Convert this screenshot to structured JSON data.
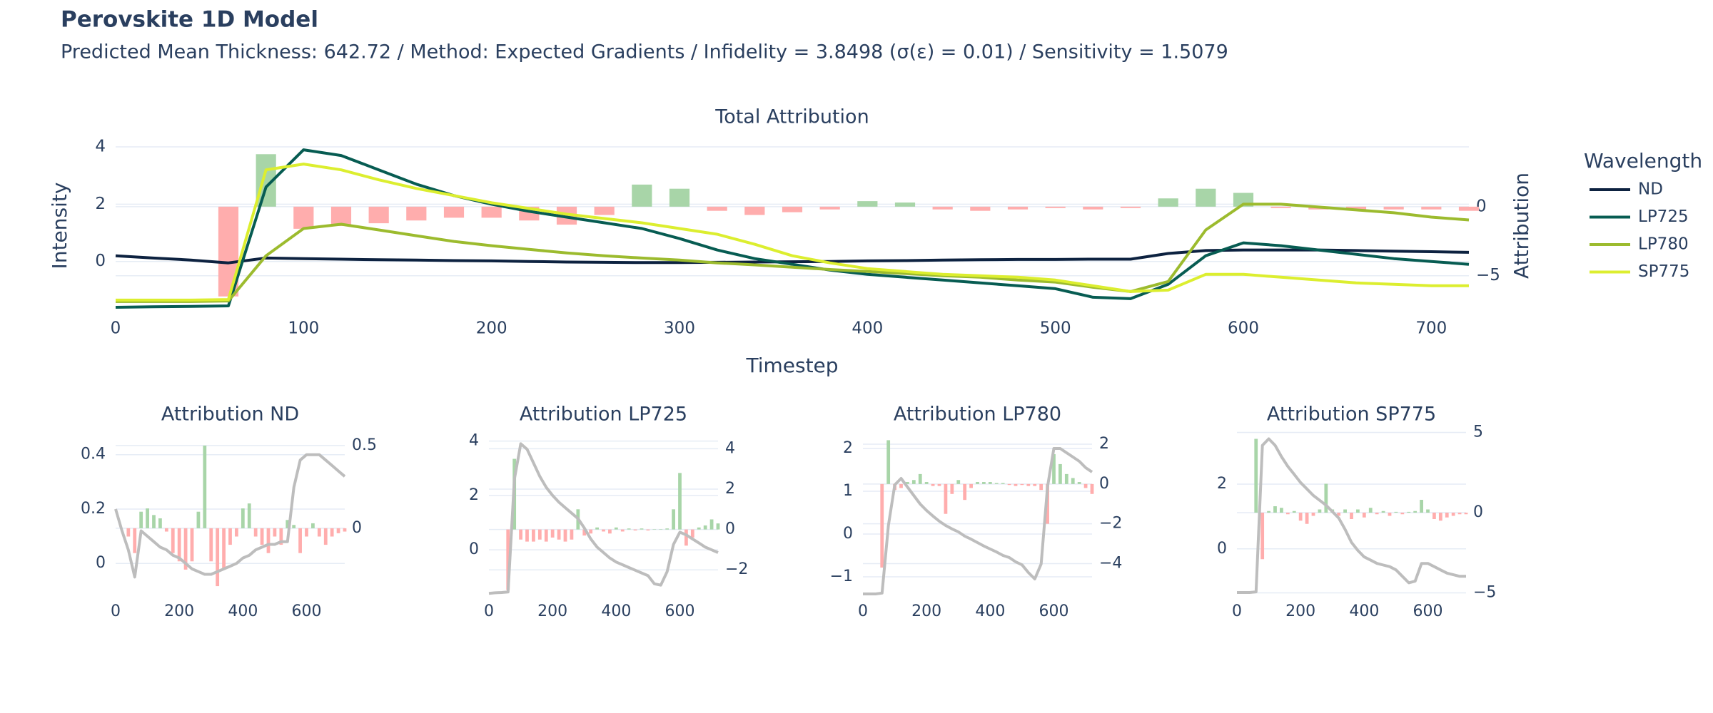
{
  "title": "Perovskite 1D Model",
  "subtitle": "Predicted Mean Thickness: 642.72 / Method: Expected Gradients / Infidelity = 3.8498 (σ(ε) = 0.01) / Sensitivity = 1.5079",
  "chart_data": [
    {
      "type": "line",
      "title": "Total Attribution",
      "x_label": "Timestep",
      "y_label": "Intensity",
      "y2_label": "Attribution",
      "legend_title": "Wavelength",
      "legend": "right",
      "grid": true,
      "x": [
        0,
        20,
        40,
        60,
        80,
        100,
        120,
        140,
        160,
        180,
        200,
        220,
        240,
        260,
        280,
        300,
        320,
        340,
        360,
        380,
        400,
        420,
        440,
        460,
        480,
        500,
        520,
        540,
        560,
        580,
        600,
        620,
        640,
        660,
        680,
        700,
        720
      ],
      "xlim": [
        0,
        720
      ],
      "xticks": [
        0,
        100,
        200,
        300,
        400,
        500,
        600,
        700
      ],
      "ylim": [
        -1.8,
        4.3
      ],
      "yticks": [
        0,
        2,
        4
      ],
      "y2lim": [
        -7.7,
        4.95
      ],
      "y2ticks": [
        {
          "value": -5,
          "label": "−5"
        },
        0
      ],
      "series": [
        {
          "name": "ND",
          "color": "#0d2240",
          "values": [
            0.2,
            0.12,
            0.05,
            -0.05,
            0.12,
            0.1,
            0.08,
            0.06,
            0.05,
            0.03,
            0.02,
            0.0,
            -0.02,
            -0.03,
            -0.04,
            -0.04,
            -0.03,
            -0.02,
            -0.01,
            0.0,
            0.02,
            0.03,
            0.05,
            0.06,
            0.07,
            0.07,
            0.08,
            0.08,
            0.28,
            0.38,
            0.4,
            0.4,
            0.4,
            0.38,
            0.36,
            0.34,
            0.32
          ]
        },
        {
          "name": "LP725",
          "color": "#075c52",
          "values": [
            -1.6,
            -1.58,
            -1.57,
            -1.55,
            2.6,
            3.9,
            3.7,
            3.2,
            2.7,
            2.3,
            2.0,
            1.75,
            1.55,
            1.35,
            1.15,
            0.8,
            0.4,
            0.1,
            -0.1,
            -0.3,
            -0.45,
            -0.55,
            -0.65,
            -0.75,
            -0.85,
            -0.95,
            -1.25,
            -1.3,
            -0.8,
            0.2,
            0.65,
            0.55,
            0.4,
            0.25,
            0.1,
            0.0,
            -0.1
          ]
        },
        {
          "name": "LP780",
          "color": "#9cbb2e",
          "values": [
            -1.4,
            -1.4,
            -1.4,
            -1.38,
            0.2,
            1.15,
            1.3,
            1.1,
            0.9,
            0.7,
            0.55,
            0.42,
            0.3,
            0.2,
            0.12,
            0.05,
            -0.05,
            -0.12,
            -0.2,
            -0.28,
            -0.35,
            -0.42,
            -0.5,
            -0.55,
            -0.65,
            -0.72,
            -0.9,
            -1.05,
            -0.7,
            1.1,
            2.0,
            2.0,
            1.9,
            1.8,
            1.7,
            1.55,
            1.45
          ]
        },
        {
          "name": "SP775",
          "color": "#dcee2f",
          "values": [
            -1.35,
            -1.35,
            -1.35,
            -1.33,
            3.2,
            3.4,
            3.2,
            2.85,
            2.55,
            2.3,
            2.05,
            1.85,
            1.65,
            1.5,
            1.35,
            1.15,
            0.95,
            0.6,
            0.2,
            -0.05,
            -0.25,
            -0.35,
            -0.45,
            -0.5,
            -0.55,
            -0.65,
            -0.85,
            -1.05,
            -1.0,
            -0.45,
            -0.45,
            -0.55,
            -0.65,
            -0.75,
            -0.8,
            -0.85,
            -0.85
          ]
        },
        {
          "type": "bar",
          "axis": "y2",
          "pos_color": "#a8d5a8",
          "neg_color": "#ffadad",
          "values": [
            0,
            0,
            0,
            -6.5,
            3.8,
            -1.6,
            -1.4,
            -1.2,
            -1.0,
            -0.8,
            -0.8,
            -1.0,
            -1.3,
            -0.6,
            1.6,
            1.3,
            -0.3,
            -0.6,
            -0.4,
            -0.2,
            0.4,
            0.3,
            -0.2,
            -0.3,
            -0.2,
            -0.1,
            -0.2,
            -0.1,
            0.6,
            1.3,
            1.0,
            -0.1,
            -0.2,
            -0.2,
            -0.2,
            -0.2,
            -0.3
          ]
        }
      ]
    },
    {
      "type": "bar_line",
      "title": "Attribution ND",
      "line_color": "#bdbdbd",
      "pos_color": "#a8d5a8",
      "neg_color": "#ffadad",
      "xlim": [
        0,
        720
      ],
      "xticks": [
        0,
        200,
        400,
        600
      ],
      "ylim": [
        -0.12,
        0.47
      ],
      "yticks": [
        0,
        0.2,
        0.4
      ],
      "y2lim": [
        -0.41,
        0.56
      ],
      "y2ticks": [
        0,
        0.5
      ],
      "values": [
        0,
        0,
        -0.05,
        -0.15,
        0.1,
        0.12,
        0.08,
        0.06,
        -0.02,
        -0.15,
        -0.2,
        -0.25,
        -0.2,
        0.1,
        0.5,
        -0.2,
        -0.35,
        -0.25,
        -0.1,
        -0.05,
        0.12,
        0.15,
        -0.05,
        -0.1,
        -0.15,
        -0.05,
        -0.1,
        0.05,
        0.02,
        -0.15,
        -0.05,
        0.03,
        -0.05,
        -0.1,
        -0.05,
        -0.03,
        -0.02
      ]
    },
    {
      "type": "bar_line",
      "title": "Attribution LP725",
      "line_color": "#bdbdbd",
      "pos_color": "#a8d5a8",
      "neg_color": "#ffadad",
      "xlim": [
        0,
        720
      ],
      "xticks": [
        0,
        200,
        400,
        600
      ],
      "ylim": [
        -1.7,
        4.2
      ],
      "yticks": [
        0,
        2,
        4
      ],
      "y2lim": [
        -3.3,
        4.65
      ],
      "y2ticks": [
        {
          "value": -2,
          "label": "−2"
        },
        0,
        2,
        4
      ],
      "values": [
        0,
        0,
        0,
        -3,
        3.5,
        -0.5,
        -0.6,
        -0.6,
        -0.5,
        -0.6,
        -0.4,
        -0.5,
        -0.6,
        -0.5,
        1.0,
        -0.3,
        -0.2,
        0.1,
        -0.1,
        -0.2,
        0.1,
        -0.1,
        0.05,
        -0.05,
        0.05,
        -0.05,
        0.02,
        0.02,
        0.05,
        1.0,
        2.8,
        -0.8,
        -0.4,
        0.1,
        0.2,
        0.5,
        0.3
      ]
    },
    {
      "type": "bar_line",
      "title": "Attribution LP780",
      "line_color": "#bdbdbd",
      "pos_color": "#a8d5a8",
      "neg_color": "#ffadad",
      "xlim": [
        0,
        720
      ],
      "xticks": [
        0,
        200,
        400,
        600
      ],
      "ylim": [
        -1.45,
        2.3
      ],
      "yticks": [
        {
          "value": -1,
          "label": "−1"
        },
        0,
        1,
        2
      ],
      "y2lim": [
        -5.63,
        2.43
      ],
      "y2ticks": [
        {
          "value": -4,
          "label": "−4"
        },
        {
          "value": -2,
          "label": "−2"
        },
        0,
        2
      ],
      "values": [
        0,
        0,
        0,
        -4.2,
        2.2,
        -0.3,
        -0.2,
        0.1,
        0.2,
        0.5,
        0.1,
        -0.1,
        -0.1,
        -1.5,
        -0.5,
        0.2,
        -0.8,
        -0.2,
        0.1,
        0.1,
        0.1,
        0.05,
        0.05,
        -0.05,
        -0.1,
        -0.05,
        -0.1,
        -0.1,
        -0.3,
        -2.0,
        1.5,
        1.0,
        0.5,
        0.3,
        0.1,
        -0.2,
        -0.5
      ]
    },
    {
      "type": "bar_line",
      "title": "Attribution SP775",
      "line_color": "#bdbdbd",
      "pos_color": "#a8d5a8",
      "neg_color": "#ffadad",
      "xlim": [
        0,
        720
      ],
      "xticks": [
        0,
        200,
        400,
        600
      ],
      "ylim": [
        -1.46,
        3.5
      ],
      "yticks": [
        0,
        2
      ],
      "y2lim": [
        -5.2,
        4.8
      ],
      "y2ticks": [
        {
          "value": -5,
          "label": "−5"
        },
        0,
        5
      ],
      "values": [
        0,
        0,
        0,
        4.6,
        -2.9,
        0.1,
        0.4,
        0.3,
        -0.1,
        0.1,
        -0.5,
        -0.7,
        -0.2,
        0.2,
        1.8,
        0.2,
        -0.2,
        0.2,
        -0.4,
        0.2,
        -0.3,
        0.3,
        -0.1,
        0.1,
        -0.2,
        0.05,
        -0.1,
        0.05,
        0.1,
        0.8,
        0.2,
        -0.4,
        -0.5,
        -0.3,
        -0.2,
        -0.1,
        -0.1
      ]
    }
  ]
}
